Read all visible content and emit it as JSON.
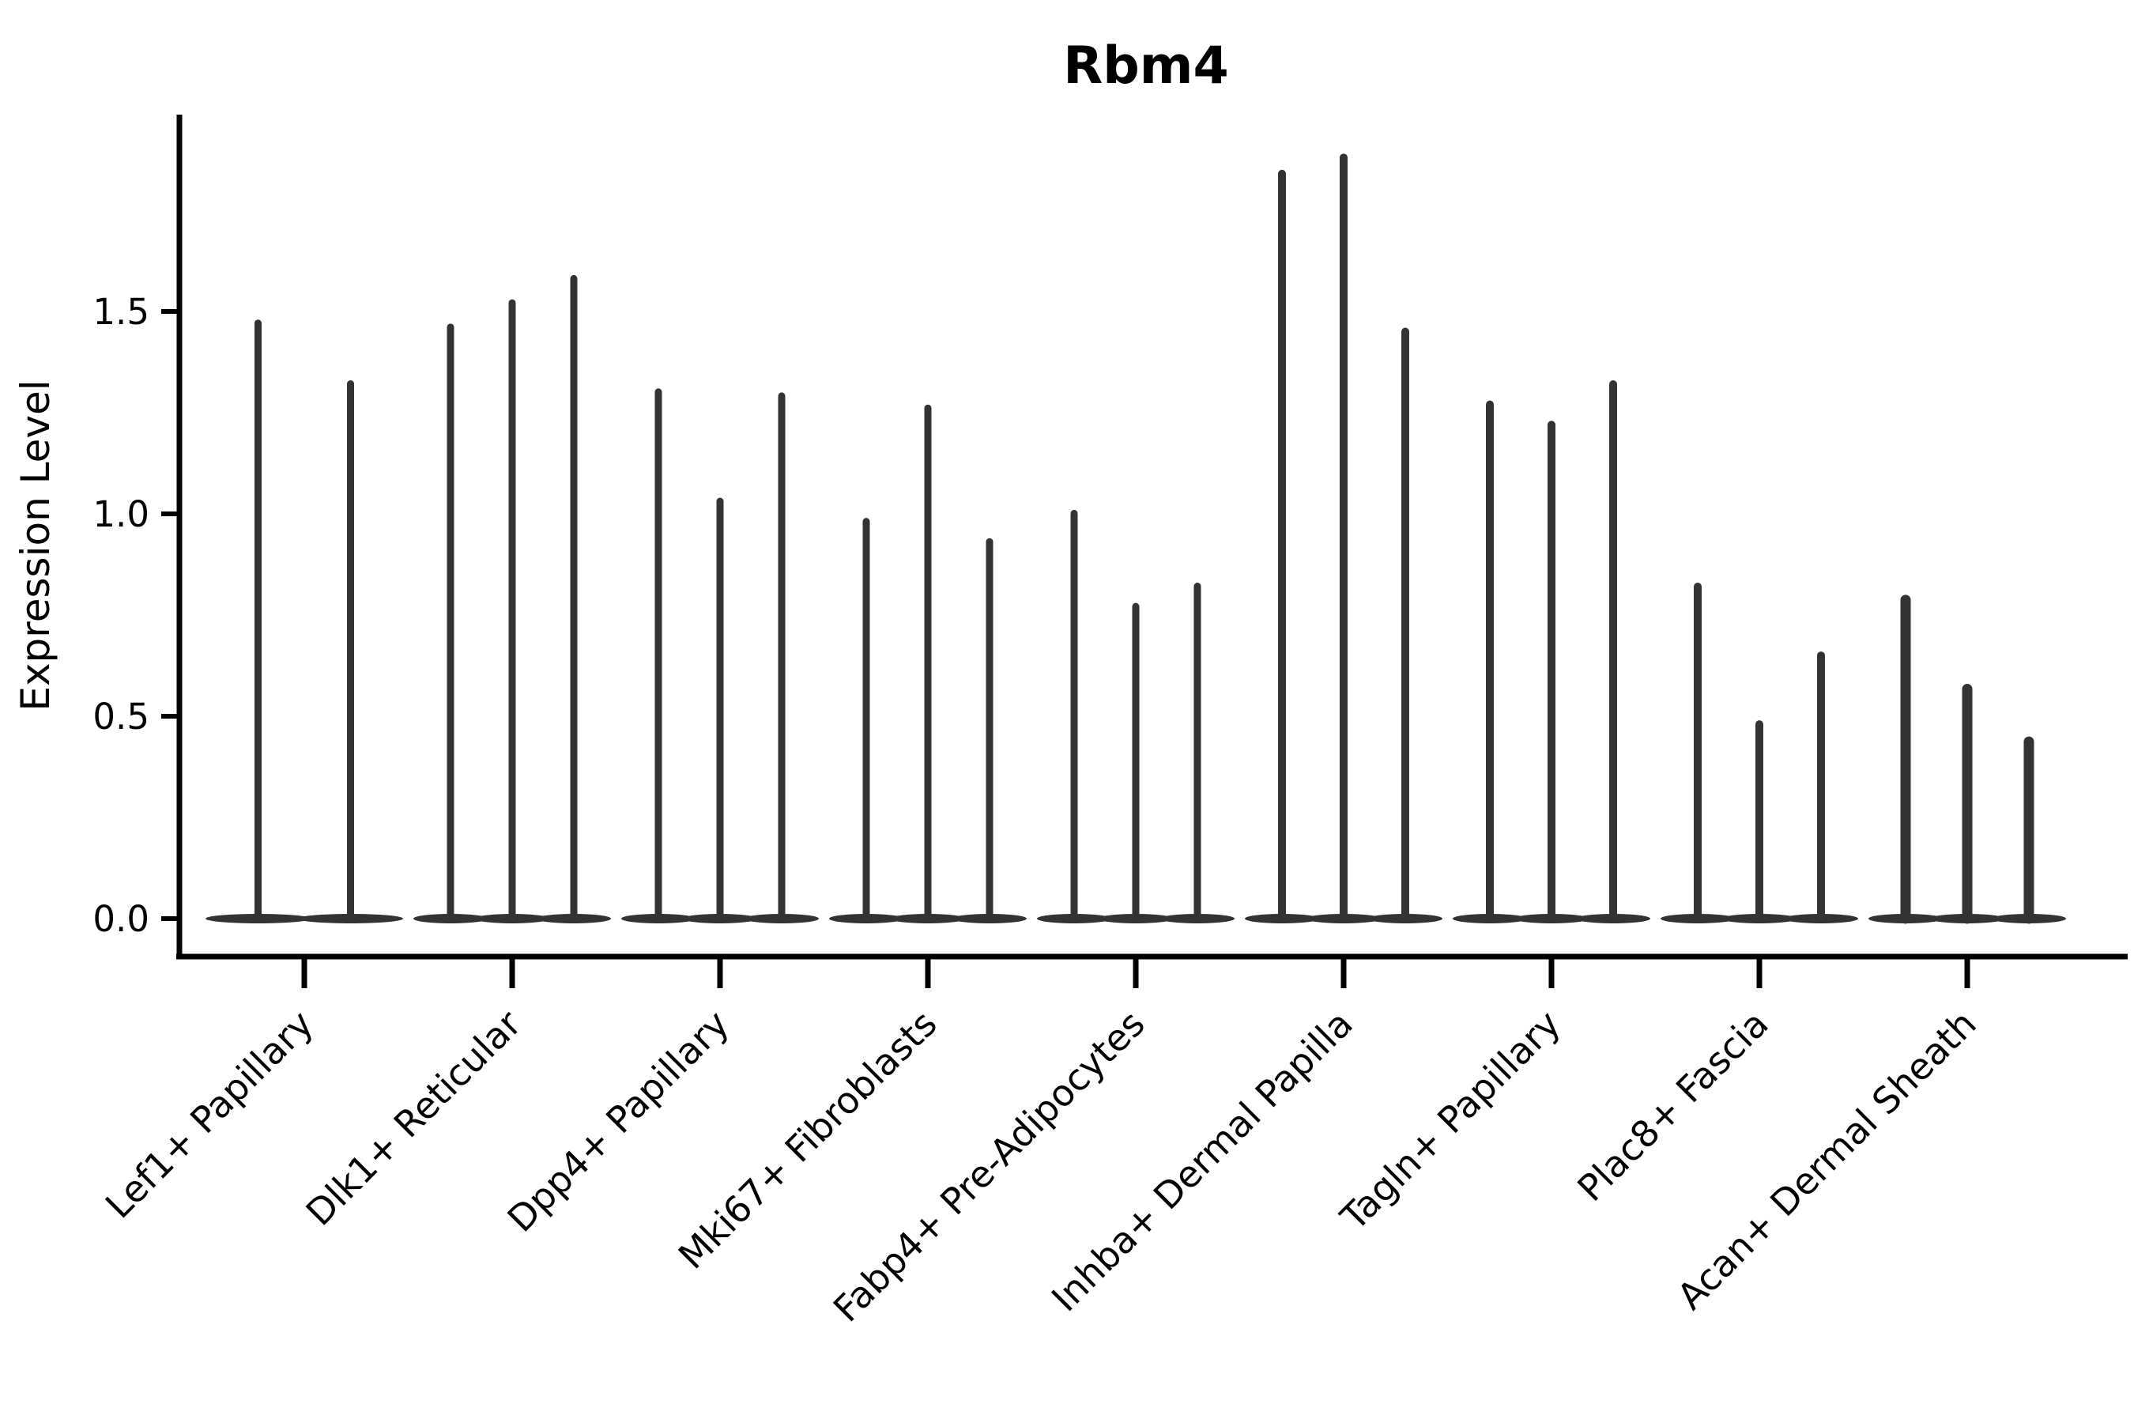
{
  "title": "Rbm4",
  "axes": {
    "ylabel": "Expression Level",
    "ytick_labels": [
      "0.0",
      "0.5",
      "1.0",
      "1.5"
    ],
    "xtick_labels": [
      "Lef1+ Papillary",
      "Dlk1+ Reticular",
      "Dpp4+ Papillary",
      "Mki67+ Fibroblasts",
      "Fabp4+ Pre-Adipocytes",
      "Inhba+ Dermal Papilla",
      "Tagln+ Papillary",
      "Plac8+ Fascia",
      "Acan+ Dermal Sheath"
    ]
  },
  "chart_data": {
    "type": "violin",
    "title": "Rbm4",
    "xlabel": "",
    "ylabel": "Expression Level",
    "ylim": [
      -0.09,
      1.99
    ],
    "yticks": [
      0.0,
      0.5,
      1.0,
      1.5
    ],
    "ytick_labels": [
      "0.0",
      "0.5",
      "1.0",
      "1.5"
    ],
    "grid": false,
    "legend_position": "none",
    "violin_color": "#333333",
    "axis_color": "#000000",
    "description": "Thin spike violins rising from a flat wide base at expression 0; peak value = max expression per violin",
    "categories": [
      "Lef1+ Papillary",
      "Dlk1+ Reticular",
      "Dpp4+ Papillary",
      "Mki67+ Fibroblasts",
      "Fabp4+ Pre-Adipocytes",
      "Inhba+ Dermal Papilla",
      "Tagln+ Papillary",
      "Plac8+ Fascia",
      "Acan+ Dermal Sheath"
    ],
    "groups": [
      {
        "label": "Lef1+ Papillary",
        "violin_peaks": [
          1.48,
          1.33
        ],
        "spike_width": 9
      },
      {
        "label": "Dlk1+ Reticular",
        "violin_peaks": [
          1.47,
          1.53,
          1.59
        ],
        "spike_width": 9
      },
      {
        "label": "Dpp4+ Papillary",
        "violin_peaks": [
          1.31,
          1.04,
          1.3
        ],
        "spike_width": 9
      },
      {
        "label": "Mki67+ Fibroblasts",
        "violin_peaks": [
          0.99,
          1.27,
          0.94
        ],
        "spike_width": 9
      },
      {
        "label": "Fabp4+ Pre-Adipocytes",
        "violin_peaks": [
          1.01,
          0.78,
          0.83
        ],
        "spike_width": 9
      },
      {
        "label": "Inhba+ Dermal Papilla",
        "violin_peaks": [
          1.85,
          1.89,
          1.46
        ],
        "spike_width": 10
      },
      {
        "label": "Tagln+ Papillary",
        "violin_peaks": [
          1.28,
          1.23,
          1.33
        ],
        "spike_width": 10
      },
      {
        "label": "Plac8+ Fascia",
        "violin_peaks": [
          0.83,
          0.49,
          0.66
        ],
        "spike_width": 10
      },
      {
        "label": "Acan+ Dermal Sheath",
        "violin_peaks": [
          0.8,
          0.58,
          0.45
        ],
        "spike_width": 13
      }
    ]
  }
}
